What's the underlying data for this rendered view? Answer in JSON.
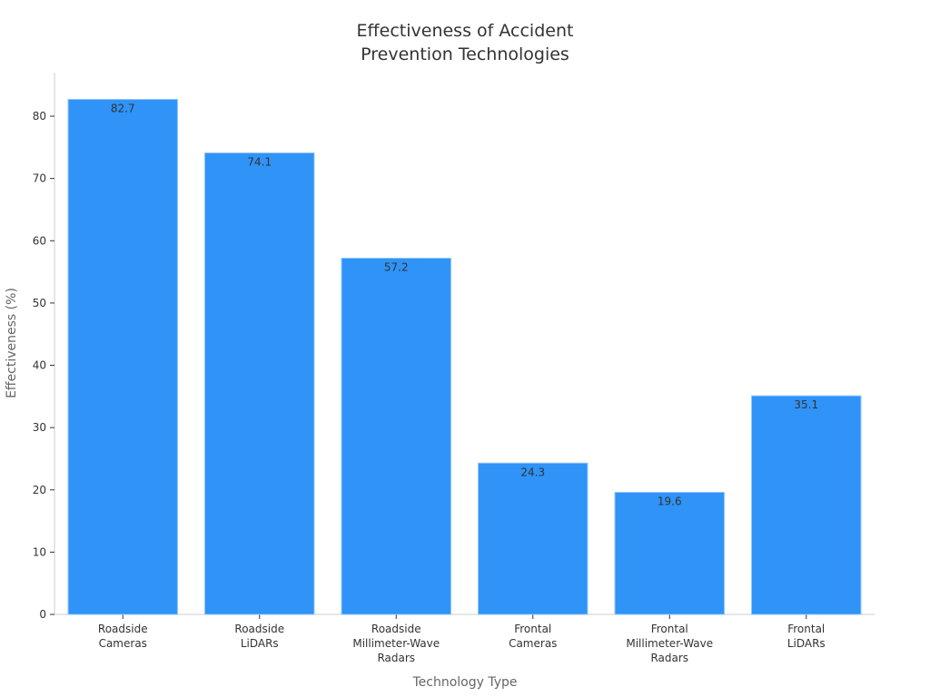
{
  "chart_data": {
    "type": "bar",
    "title": "Effectiveness of Accident\nPrevention Technologies",
    "x_label": "Technology Type",
    "y_label": "Effectiveness (%)",
    "categories": [
      "Roadside\nCameras",
      "Roadside\nLiDARs",
      "Roadside\nMillimeter-Wave\nRadars",
      "Frontal\nCameras",
      "Frontal\nMillimeter-Wave\nRadars",
      "Frontal\nLiDARs"
    ],
    "values": [
      82.7,
      74.1,
      57.2,
      24.3,
      19.6,
      35.1
    ],
    "color": "#2f93f7",
    "ylim": [
      0,
      87
    ],
    "yticks": [
      0,
      10,
      20,
      30,
      40,
      50,
      60,
      70,
      80
    ],
    "grid": false,
    "data_labels": true
  }
}
